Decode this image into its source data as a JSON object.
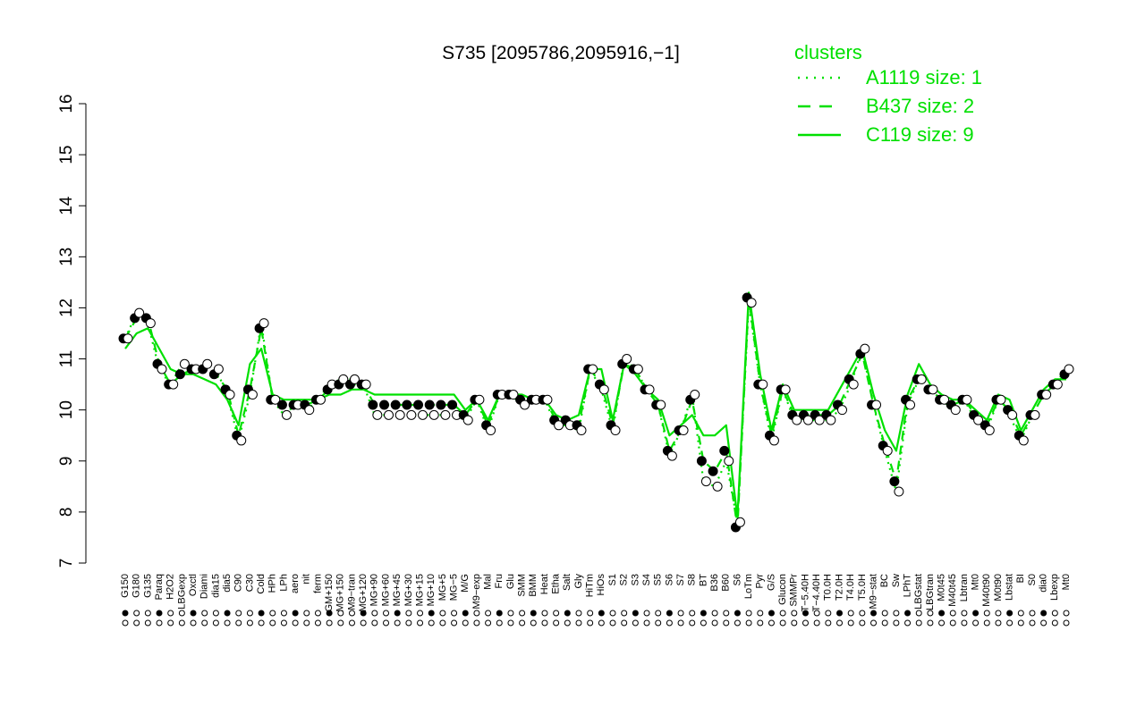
{
  "chart_data": {
    "type": "line",
    "title": "S735 [2095786,2095916,−1]",
    "xlabel": "",
    "ylabel": "",
    "ylim": [
      7,
      16
    ],
    "yticks": [
      7,
      8,
      9,
      10,
      11,
      12,
      13,
      14,
      15,
      16
    ],
    "grid": false,
    "legend": {
      "title": "clusters",
      "position": "top-right",
      "entries": [
        {
          "label": "A1119 size: 1",
          "style": "dotted"
        },
        {
          "label": "B437 size: 2",
          "style": "dashed"
        },
        {
          "label": "C119 size: 9",
          "style": "solid"
        }
      ]
    },
    "colors": {
      "lines": "#00e000",
      "points_filled": "#000000",
      "points_open": "#ffffff"
    },
    "categories": [
      "G150",
      "G180",
      "G135",
      "Paraq",
      "H2O2",
      "LBGexp",
      "Oxctl",
      "Diami",
      "dia15",
      "dia5",
      "C90",
      "C30",
      "Cold",
      "HPh",
      "LPh",
      "aero",
      "nit",
      "ferm",
      "GM+150",
      "MG+150",
      "M9−tran",
      "MG+120",
      "MG+90",
      "MG+60",
      "MG+45",
      "MG+30",
      "MG+15",
      "MG+10",
      "MG+5",
      "MG−5",
      "M/G",
      "M9−exp",
      "Mal",
      "Fru",
      "Glu",
      "SMM",
      "BMM",
      "Heat",
      "Etha",
      "Salt",
      "Gly",
      "HiTm",
      "HiOs",
      "S1",
      "S2",
      "S3",
      "S4",
      "S5",
      "S6",
      "S7",
      "S8",
      "BT",
      "B36",
      "B60",
      "S6",
      "LoTm",
      "Pyr",
      "G/S",
      "Glucon",
      "SMMPr",
      "T−5.40H",
      "T−4.40H",
      "T0.0H",
      "T2.0H",
      "T4.0H",
      "T5.0H",
      "M9−stat",
      "BC",
      "Sw",
      "LPhT",
      "LBGstat",
      "LBGtran",
      "M0t45",
      "M40t45",
      "Lbtran",
      "Mt0",
      "M40t90",
      "M0t90",
      "Lbstat",
      "BI",
      "S0",
      "dia0",
      "Lbexp",
      "Mt0"
    ],
    "series": [
      {
        "name": "C119 size: 9",
        "style": "solid",
        "values": [
          11.2,
          11.5,
          11.6,
          11.2,
          10.8,
          10.7,
          10.7,
          10.6,
          10.5,
          10.2,
          9.7,
          10.9,
          11.2,
          10.3,
          10.2,
          10.2,
          10.2,
          10.2,
          10.3,
          10.3,
          10.4,
          10.4,
          10.3,
          10.3,
          10.3,
          10.3,
          10.3,
          10.3,
          10.3,
          10.3,
          10.0,
          10.2,
          9.8,
          10.3,
          10.3,
          10.3,
          10.2,
          10.2,
          9.9,
          9.8,
          9.9,
          10.8,
          10.8,
          9.8,
          10.9,
          10.7,
          10.4,
          10.2,
          9.5,
          9.7,
          9.9,
          9.5,
          9.5,
          9.7,
          7.9,
          12.3,
          10.7,
          9.6,
          10.5,
          10.0,
          10.0,
          10.0,
          10.0,
          10.4,
          10.8,
          11.2,
          10.3,
          9.6,
          9.2,
          10.3,
          10.9,
          10.5,
          10.3,
          10.2,
          10.2,
          10.0,
          9.8,
          10.3,
          10.2,
          9.6,
          10.0,
          10.4,
          10.6,
          10.6
        ]
      },
      {
        "name": "B437 size: 2",
        "style": "dashed",
        "values": [
          11.4,
          11.8,
          11.8,
          10.9,
          10.5,
          10.7,
          10.8,
          10.8,
          10.7,
          10.4,
          9.5,
          10.4,
          11.6,
          10.2,
          10.1,
          10.1,
          10.1,
          10.2,
          10.4,
          10.5,
          10.5,
          10.5,
          10.1,
          10.1,
          10.1,
          10.1,
          10.1,
          10.1,
          10.1,
          10.1,
          9.9,
          10.2,
          9.7,
          10.3,
          10.3,
          10.2,
          10.2,
          10.2,
          9.8,
          9.8,
          9.7,
          10.8,
          10.5,
          9.7,
          10.9,
          10.8,
          10.4,
          10.1,
          9.2,
          9.6,
          10.2,
          9.0,
          8.8,
          9.2,
          7.7,
          12.2,
          10.5,
          9.5,
          10.4,
          9.9,
          9.9,
          9.9,
          9.9,
          10.1,
          10.6,
          11.1,
          10.1,
          9.3,
          8.6,
          10.2,
          10.6,
          10.4,
          10.2,
          10.1,
          10.2,
          9.9,
          9.7,
          10.2,
          10.0,
          9.5,
          9.9,
          10.3,
          10.5,
          10.7
        ]
      },
      {
        "name": "A1119 size: 1",
        "style": "dotted",
        "values": [
          11.4,
          11.9,
          11.7,
          10.8,
          10.5,
          10.9,
          10.8,
          10.9,
          10.8,
          10.3,
          9.4,
          10.3,
          11.7,
          10.2,
          9.9,
          10.1,
          10.0,
          10.2,
          10.5,
          10.6,
          10.6,
          10.5,
          9.9,
          9.9,
          9.9,
          9.9,
          9.9,
          9.9,
          9.9,
          9.9,
          9.8,
          10.2,
          9.6,
          10.3,
          10.3,
          10.1,
          10.2,
          10.2,
          9.7,
          9.7,
          9.6,
          10.8,
          10.4,
          9.6,
          11.0,
          10.8,
          10.4,
          10.1,
          9.1,
          9.6,
          10.3,
          8.6,
          8.5,
          9.0,
          7.8,
          12.1,
          10.5,
          9.4,
          10.4,
          9.8,
          9.8,
          9.8,
          9.8,
          10.0,
          10.5,
          11.2,
          10.1,
          9.2,
          8.4,
          10.1,
          10.6,
          10.4,
          10.2,
          10.0,
          10.2,
          9.8,
          9.6,
          10.2,
          9.9,
          9.4,
          9.9,
          10.3,
          10.5,
          10.8
        ]
      }
    ],
    "axis_labels": {
      "x_visible": [
        "G150",
        "G180",
        "G135",
        "Paraq",
        "H2O2",
        "LBGexp",
        "Oxctl",
        "Diami",
        "dia15",
        "dia5",
        "C90",
        "C30",
        "Cold",
        "HPh",
        "LPh",
        "aero",
        "nit",
        "ferm",
        "GM+150",
        "MG+150",
        "M9−tran",
        "MG+120",
        "MG+90",
        "MG+60",
        "MG+45",
        "MG+30",
        "MG+15",
        "MG+10",
        "MG+5",
        "MG−5",
        "M/G",
        "M9−exp",
        "Mal",
        "Fru",
        "Glu",
        "SMM",
        "BMM",
        "Heat",
        "Etha",
        "Salt",
        "Gly",
        "HiTm",
        "HiOs",
        "S1",
        "S2",
        "S3",
        "S4",
        "S5",
        "S6",
        "S7",
        "S8",
        "BT",
        "B36",
        "B60",
        "S6",
        "LoTm",
        "Pyr",
        "G/S",
        "Glucon",
        "SMMPr",
        "T−5.40H",
        "T−4.40H",
        "T0.0H",
        "T2.0H",
        "T4.0H",
        "T5.0H",
        "M9−stat",
        "BC",
        "Sw",
        "LPhT",
        "LBGstat",
        "LBGtran",
        "M0t45",
        "M40t45",
        "Lbtran",
        "Mt0",
        "M40t90",
        "M0t90",
        "Lbstat",
        "BI",
        "S0",
        "dia0",
        "Lbexp",
        "Mt0"
      ]
    }
  }
}
